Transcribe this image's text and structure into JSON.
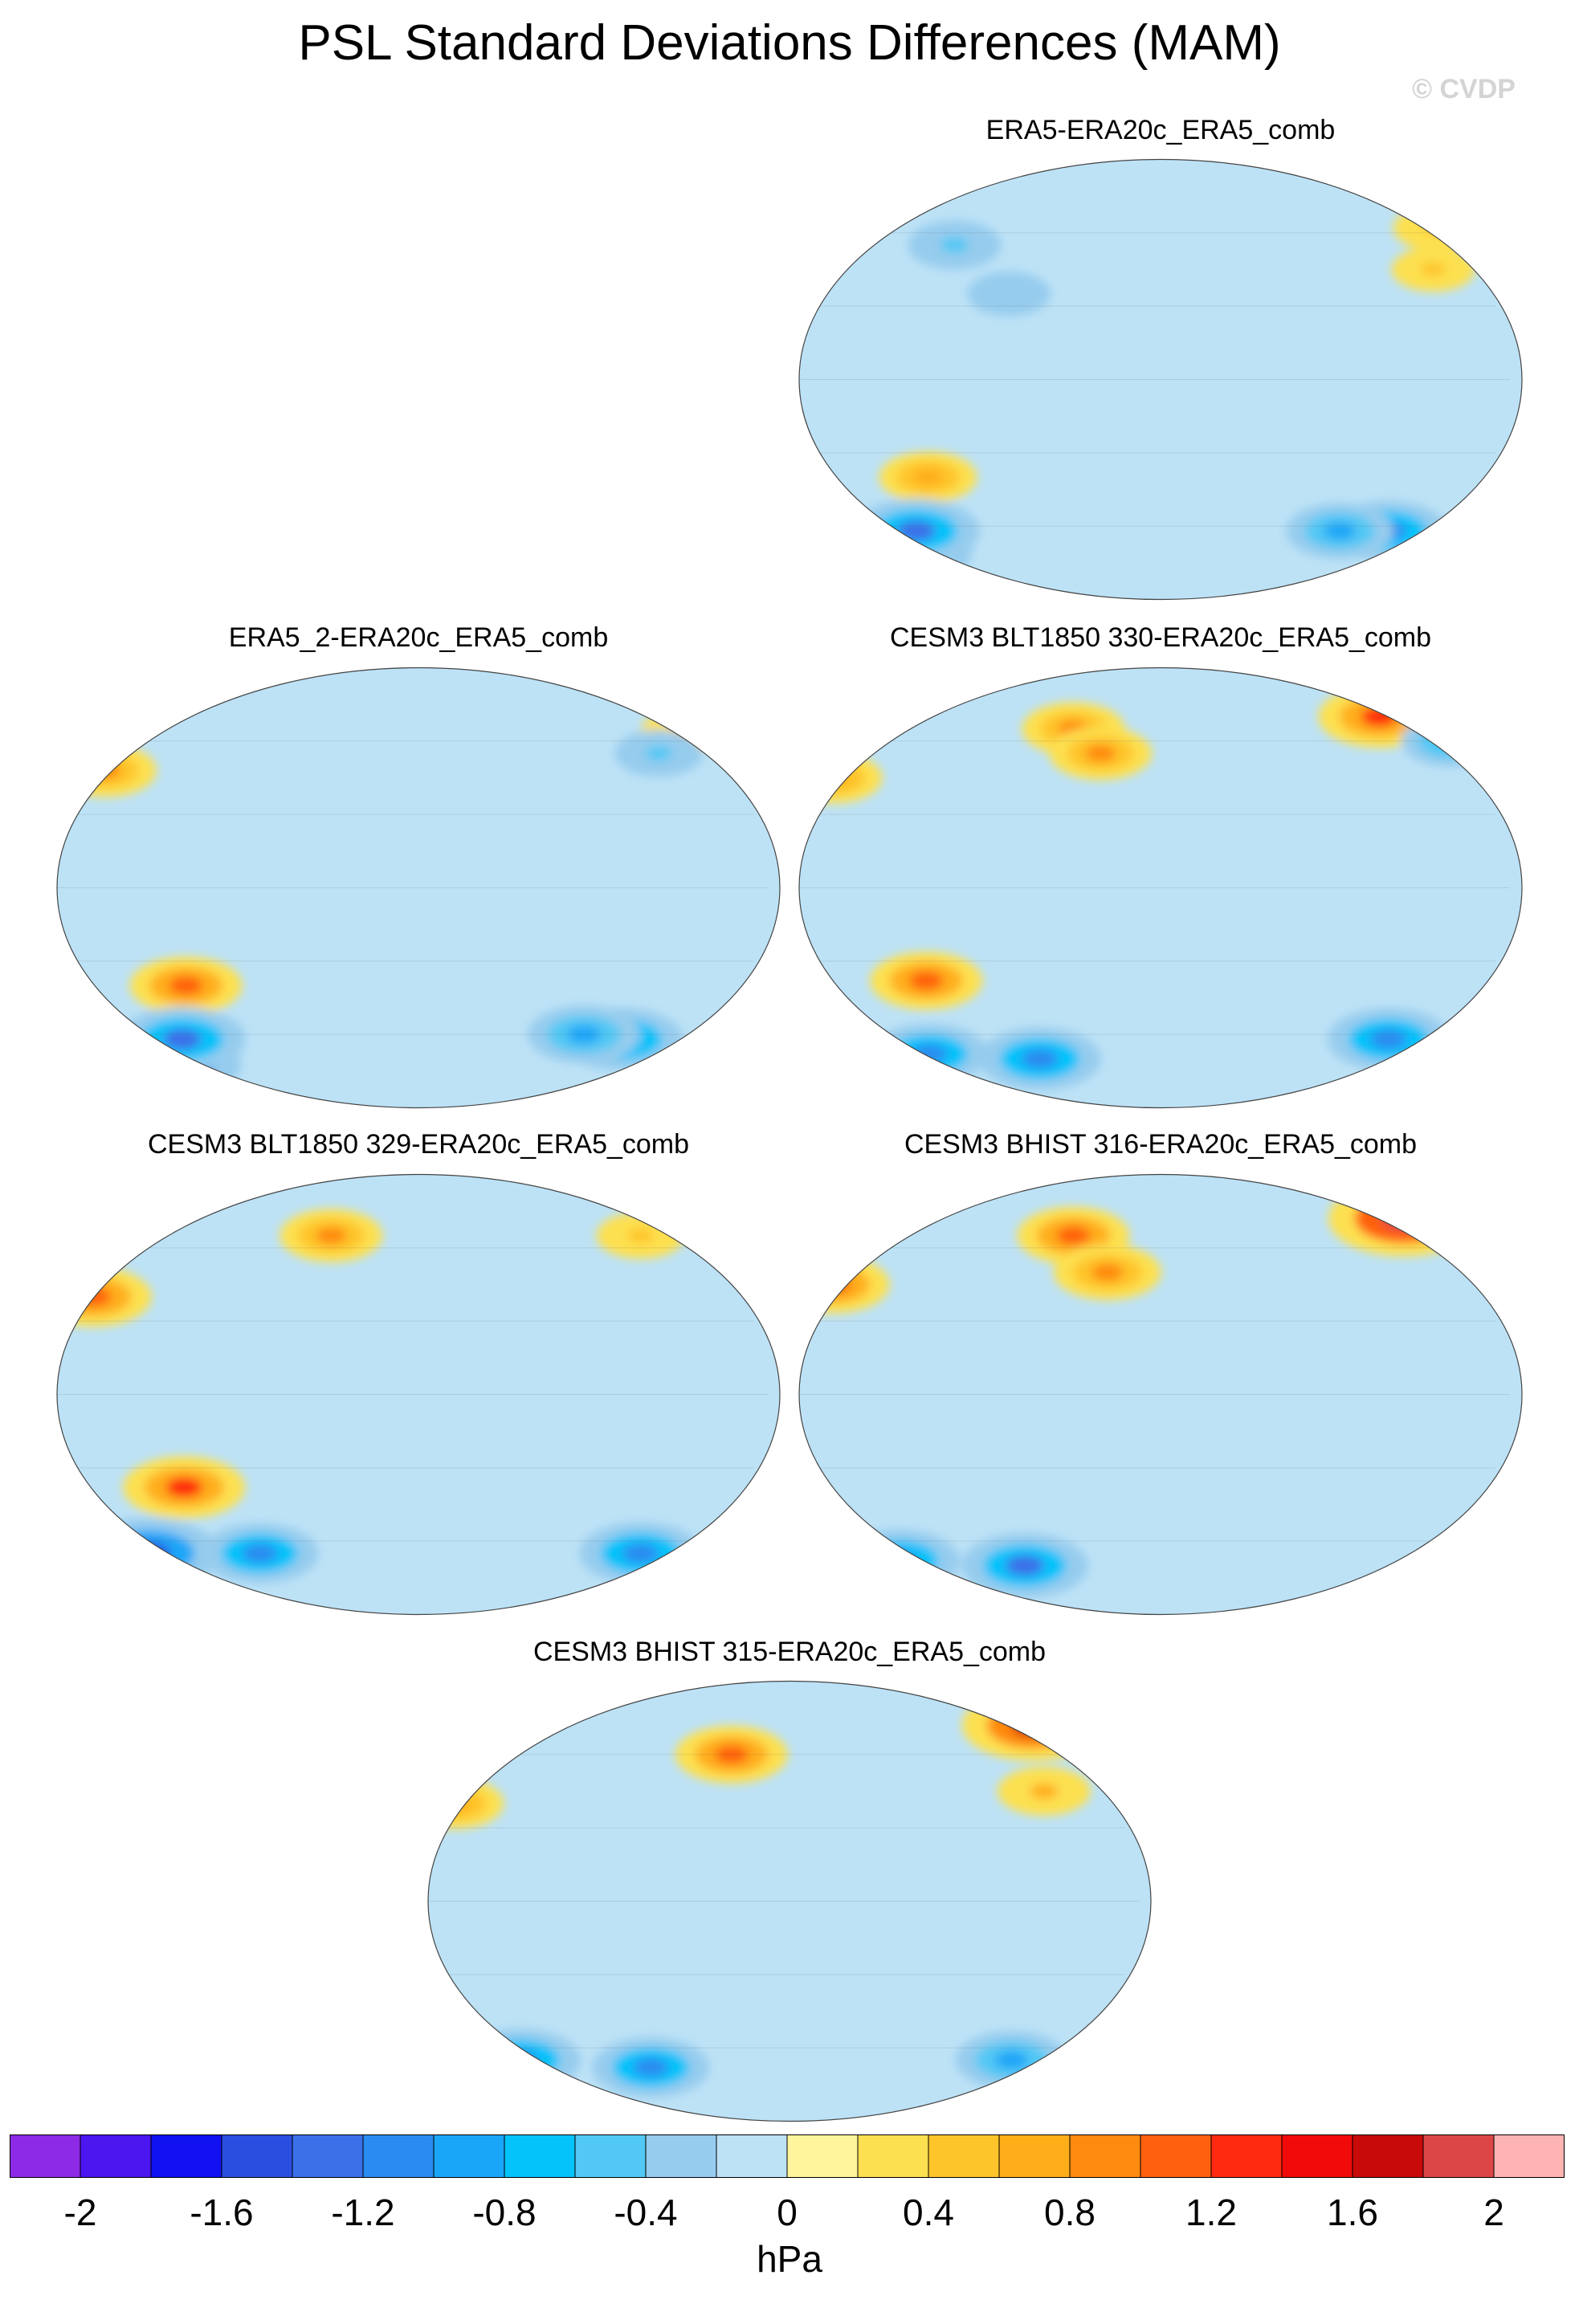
{
  "figure": {
    "title": "PSL Standard Deviations Differences (MAM)",
    "watermark": "© CVDP"
  },
  "chart_data": {
    "type": "heatmap",
    "title": "PSL Standard Deviations Differences (MAM)",
    "projection": "Robinson (global, Pacific-centered)",
    "variable": "PSL standard deviation difference",
    "season": "MAM",
    "units": "hPa",
    "colorbar": {
      "levels": [
        -2,
        -1.8,
        -1.6,
        -1.4,
        -1.2,
        -1,
        -0.8,
        -0.6,
        -0.4,
        -0.2,
        0,
        0.2,
        0.4,
        0.6,
        0.8,
        1,
        1.2,
        1.4,
        1.6,
        1.8,
        2
      ],
      "tick_labels": [
        "-2",
        "-1.6",
        "-1.2",
        "-0.8",
        "-0.4",
        "0",
        "0.4",
        "0.8",
        "1.2",
        "1.6",
        "2"
      ],
      "colors": [
        "#8c2ae6",
        "#4b16f0",
        "#1010f0",
        "#2a4ee0",
        "#3b70e8",
        "#2a8cf0",
        "#1aa6f8",
        "#04c2fa",
        "#52c8f4",
        "#96ccee",
        "#bde2f6",
        "#fff59c",
        "#fde050",
        "#fec52a",
        "#ffae1a",
        "#ff8a10",
        "#ff6010",
        "#ff2a10",
        "#f20a0a",
        "#c80a0a",
        "#dc4646",
        "#ffb4b4"
      ],
      "unit_label": "hPa"
    },
    "panels": [
      {
        "id": "p1",
        "title": "ERA5-ERA20c_ERA5_comb",
        "features": [
          {
            "lon": 55,
            "lat": -40,
            "value": 0.7
          },
          {
            "lon": 10,
            "lat": -70,
            "value": -1.5
          },
          {
            "lon": 30,
            "lat": -62,
            "value": -1.3
          },
          {
            "lon": -40,
            "lat": -62,
            "value": -1.1
          },
          {
            "lon": -70,
            "lat": -62,
            "value": -0.9
          },
          {
            "lon": -10,
            "lat": 62,
            "value": 0.5
          },
          {
            "lon": -30,
            "lat": 45,
            "value": 0.4
          },
          {
            "lon": 60,
            "lat": 55,
            "value": -0.6
          },
          {
            "lon": 100,
            "lat": 35,
            "value": -0.4
          }
        ]
      },
      {
        "id": "p2",
        "title": "ERA5_2-ERA20c_ERA5_comb",
        "features": [
          {
            "lon": 55,
            "lat": -40,
            "value": 1.0
          },
          {
            "lon": 10,
            "lat": -72,
            "value": -1.7
          },
          {
            "lon": 35,
            "lat": -62,
            "value": -1.3
          },
          {
            "lon": -55,
            "lat": -62,
            "value": -1.2
          },
          {
            "lon": -80,
            "lat": -60,
            "value": -1.0
          },
          {
            "lon": 5,
            "lat": 48,
            "value": 0.8
          },
          {
            "lon": -15,
            "lat": 64,
            "value": 0.4
          },
          {
            "lon": -40,
            "lat": 55,
            "value": -0.5
          }
        ]
      },
      {
        "id": "p3",
        "title": "CESM3 BLT1850 330-ERA20c_ERA5_comb",
        "features": [
          {
            "lon": -35,
            "lat": 70,
            "value": 1.2
          },
          {
            "lon": 0,
            "lat": 45,
            "value": 0.7
          },
          {
            "lon": -5,
            "lat": 60,
            "value": -0.7
          },
          {
            "lon": 125,
            "lat": 65,
            "value": 0.8
          },
          {
            "lon": 145,
            "lat": 55,
            "value": 0.8
          },
          {
            "lon": 55,
            "lat": -38,
            "value": 1.0
          },
          {
            "lon": -40,
            "lat": -62,
            "value": -1.2
          },
          {
            "lon": 30,
            "lat": -68,
            "value": -1.1
          },
          {
            "lon": 100,
            "lat": -70,
            "value": -1.2
          }
        ]
      },
      {
        "id": "p4",
        "title": "CESM3 BLT1850 329-ERA20c_ERA5_comb",
        "features": [
          {
            "lon": 5,
            "lat": 40,
            "value": 1.1
          },
          {
            "lon": 55,
            "lat": -38,
            "value": 1.2
          },
          {
            "lon": 125,
            "lat": 65,
            "value": 0.8
          },
          {
            "lon": -40,
            "lat": 65,
            "value": 0.5
          },
          {
            "lon": 10,
            "lat": -65,
            "value": -1.6
          },
          {
            "lon": -40,
            "lat": -65,
            "value": -1.2
          },
          {
            "lon": 80,
            "lat": -65,
            "value": -1.1
          }
        ]
      },
      {
        "id": "p5",
        "title": "CESM3 BHIST 316-ERA20c_ERA5_comb",
        "features": [
          {
            "lon": -15,
            "lat": 72,
            "value": 1.8
          },
          {
            "lon": 0,
            "lat": 45,
            "value": 1.0
          },
          {
            "lon": 125,
            "lat": 65,
            "value": 1.0
          },
          {
            "lon": 150,
            "lat": 50,
            "value": 0.9
          },
          {
            "lon": 10,
            "lat": -68,
            "value": -1.2
          },
          {
            "lon": 90,
            "lat": -70,
            "value": -1.3
          }
        ]
      },
      {
        "id": "p6",
        "title": "CESM3 BHIST 315-ERA20c_ERA5_comb",
        "features": [
          {
            "lon": -15,
            "lat": 72,
            "value": 1.6
          },
          {
            "lon": 145,
            "lat": 60,
            "value": 1.0
          },
          {
            "lon": 0,
            "lat": 40,
            "value": 0.7
          },
          {
            "lon": -40,
            "lat": 45,
            "value": 0.6
          },
          {
            "lon": 10,
            "lat": -65,
            "value": -1.2
          },
          {
            "lon": -40,
            "lat": -65,
            "value": -1.0
          },
          {
            "lon": 90,
            "lat": -68,
            "value": -1.1
          }
        ]
      }
    ]
  }
}
